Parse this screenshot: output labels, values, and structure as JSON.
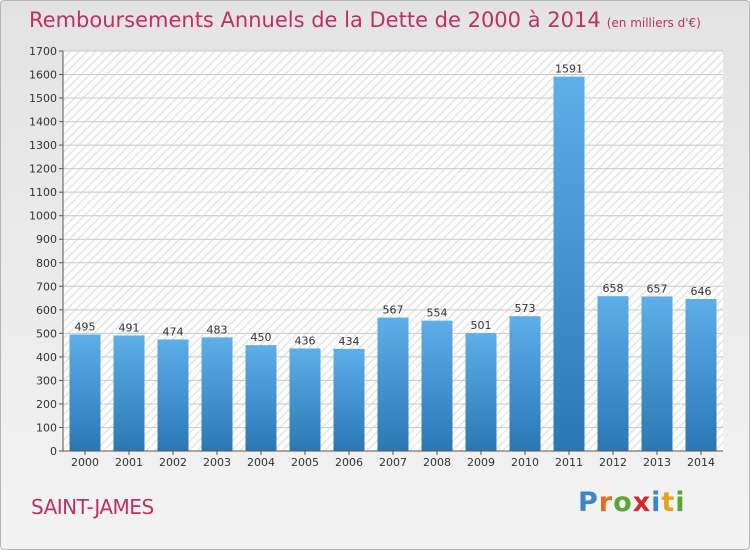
{
  "header": {
    "title": "Remboursements Annuels de la Dette de 2000 à 2014",
    "unit": "(en milliers d'€)"
  },
  "footer": {
    "city": "SAINT-JAMES",
    "logo": "Proxiti",
    "logo_letters": [
      {
        "ch": "P",
        "color": "#3a86c8"
      },
      {
        "ch": "r",
        "color": "#e86a1c"
      },
      {
        "ch": "o",
        "color": "#5aa532"
      },
      {
        "ch": "x",
        "color": "#d4262b"
      },
      {
        "ch": "i",
        "color": "#3a86c8"
      },
      {
        "ch": "t",
        "color": "#e8a21c"
      },
      {
        "ch": "i",
        "color": "#5aa532"
      }
    ]
  },
  "colors": {
    "accent": "#c0305f",
    "bar_top": "#5eaeea",
    "bar_bottom": "#2a77b4",
    "grid": "#c8c8c8"
  },
  "chart_data": {
    "type": "bar",
    "categories": [
      "2000",
      "2001",
      "2002",
      "2003",
      "2004",
      "2005",
      "2006",
      "2007",
      "2008",
      "2009",
      "2010",
      "2011",
      "2012",
      "2013",
      "2014"
    ],
    "values": [
      495,
      491,
      474,
      483,
      450,
      436,
      434,
      567,
      554,
      501,
      573,
      1591,
      658,
      657,
      646
    ],
    "ylim": [
      0,
      1700
    ],
    "yticks": [
      0,
      100,
      200,
      300,
      400,
      500,
      600,
      700,
      800,
      900,
      1000,
      1100,
      1200,
      1300,
      1400,
      1500,
      1600,
      1700
    ],
    "grid": true,
    "data_labels": true
  }
}
